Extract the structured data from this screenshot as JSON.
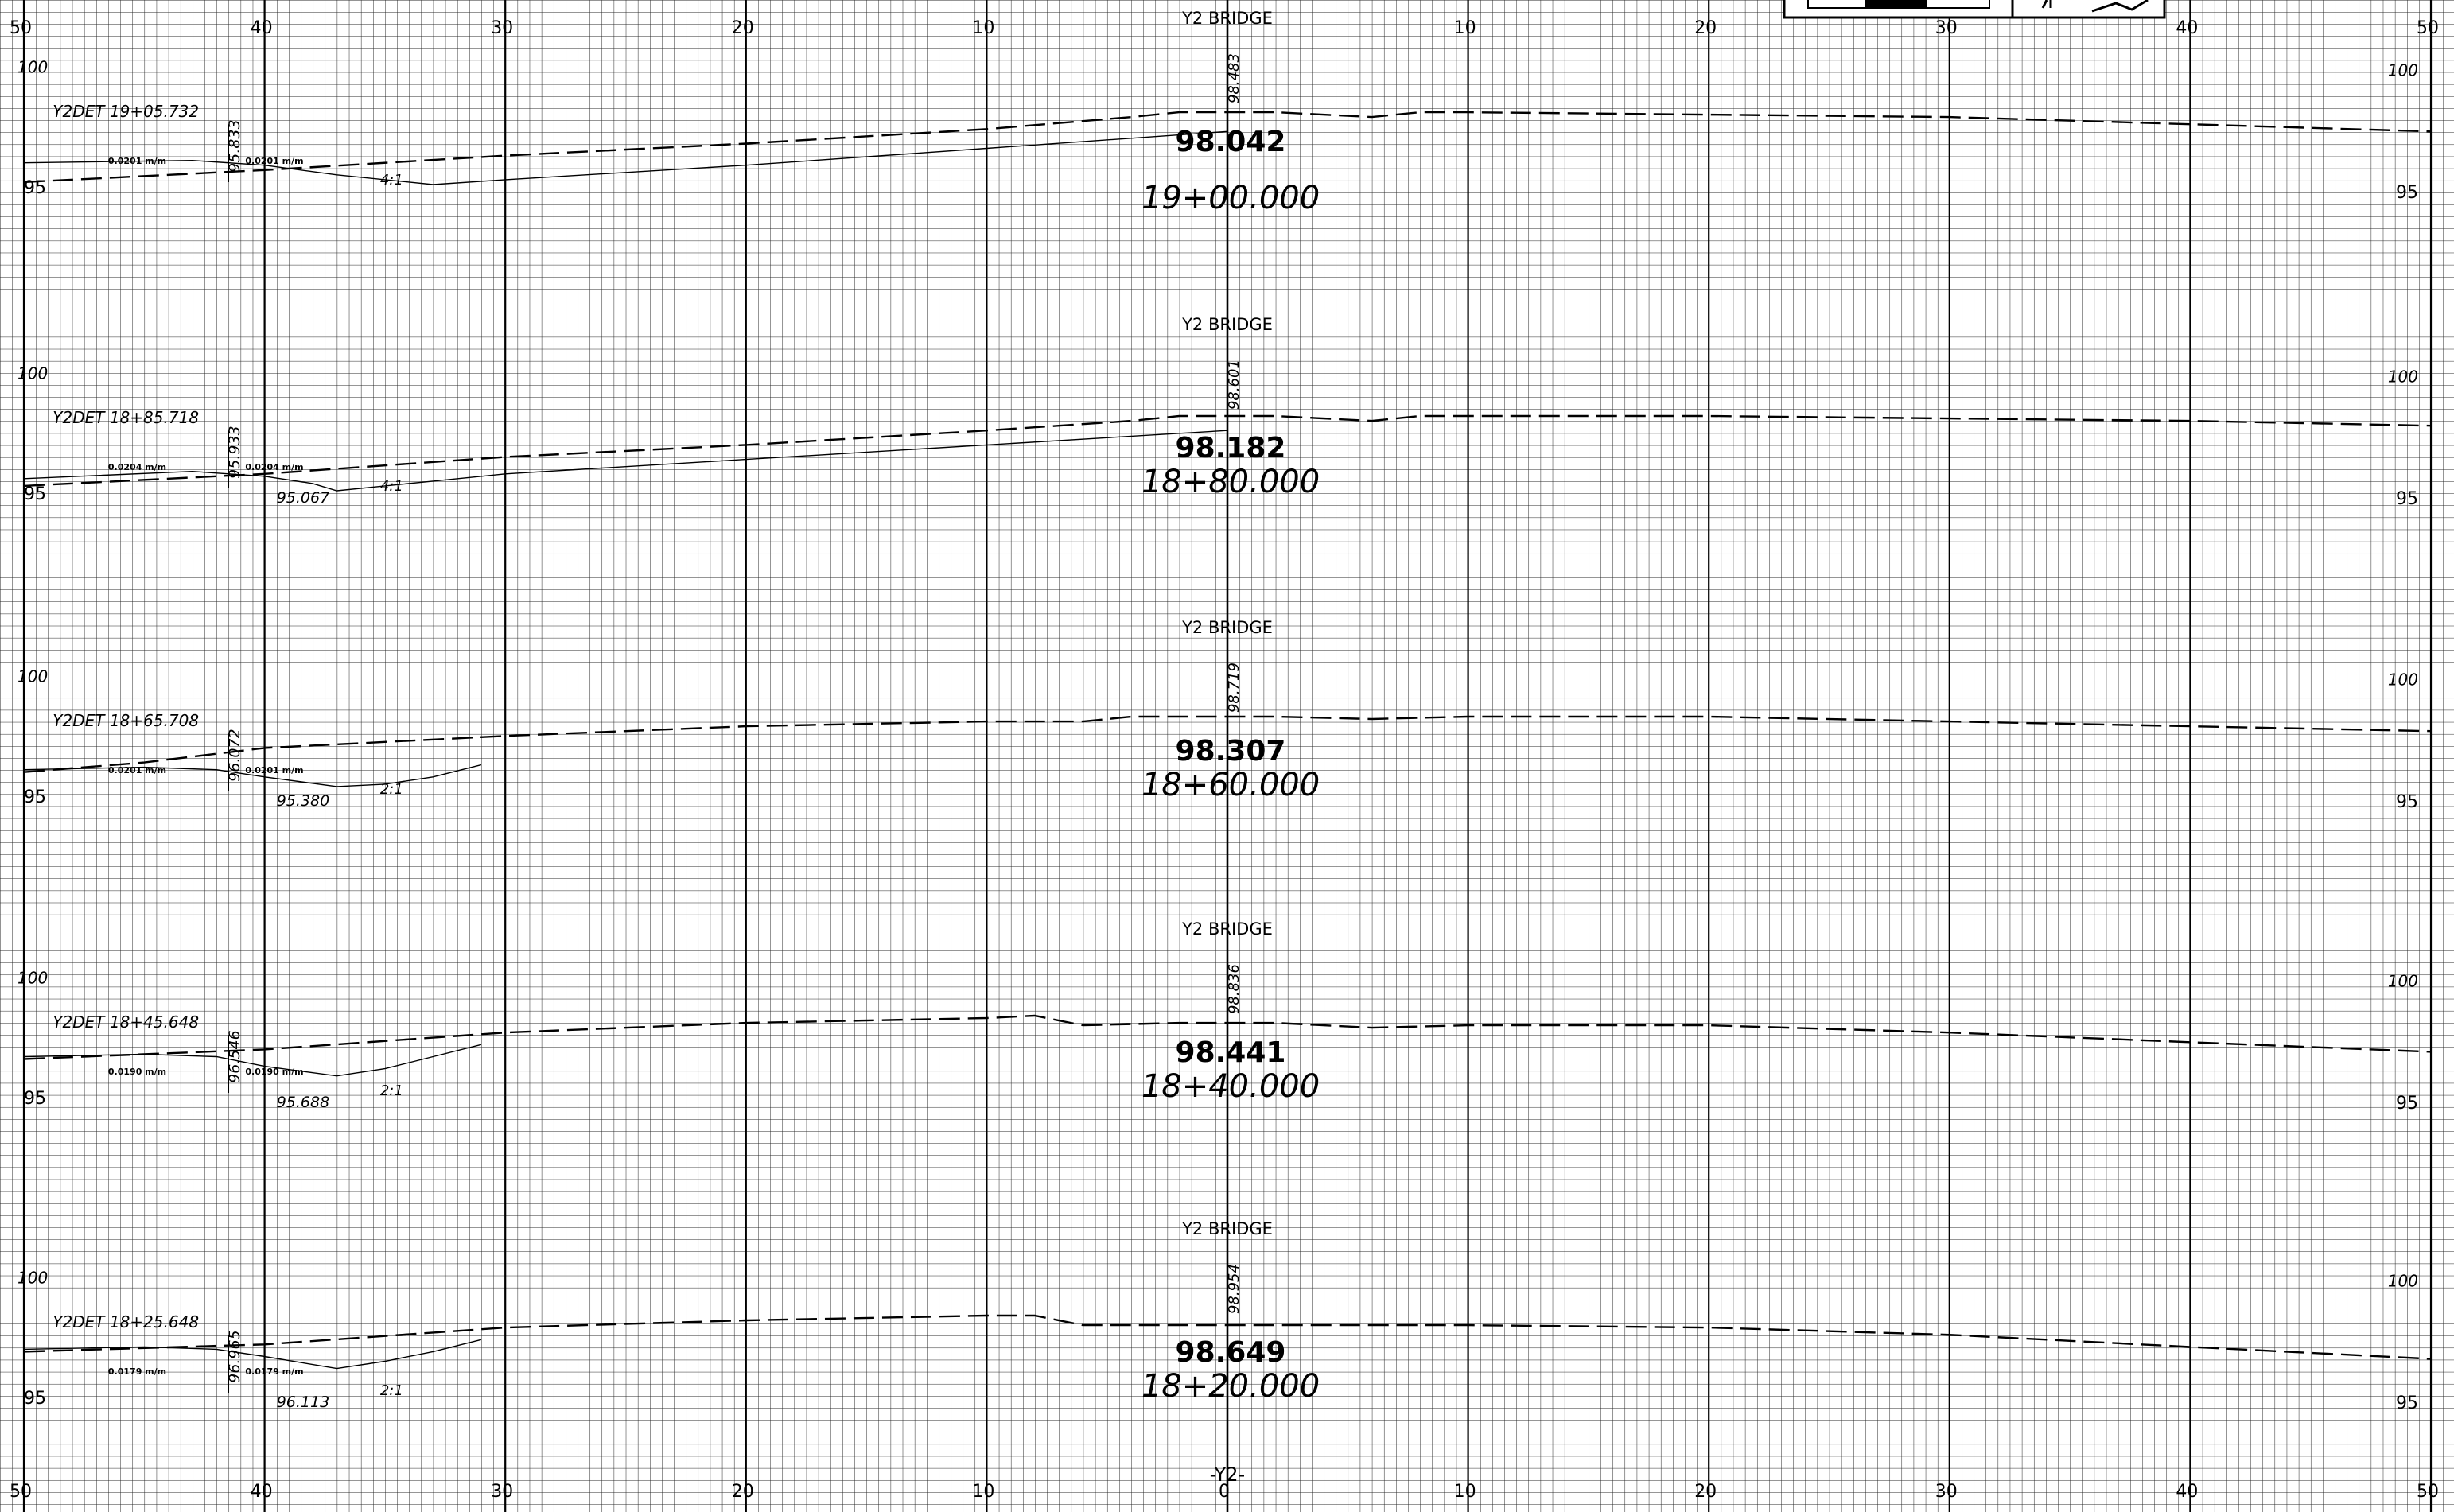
{
  "sheet": {
    "offset_axis": {
      "label": "-Y2-",
      "range": [
        -50,
        50
      ],
      "top_ticks": [
        {
          "value": -50,
          "label": "50"
        },
        {
          "value": -40,
          "label": "40"
        },
        {
          "value": -30,
          "label": "30"
        },
        {
          "value": -20,
          "label": "20"
        },
        {
          "value": -10,
          "label": "10"
        },
        {
          "value": 0,
          "label": ""
        },
        {
          "value": 10,
          "label": "10"
        },
        {
          "value": 20,
          "label": "20"
        },
        {
          "value": 30,
          "label": "30"
        },
        {
          "value": 40,
          "label": "40"
        },
        {
          "value": 50,
          "label": "50"
        }
      ],
      "bottom_ticks": [
        {
          "value": -50,
          "label": "50"
        },
        {
          "value": -40,
          "label": "40"
        },
        {
          "value": -30,
          "label": "30"
        },
        {
          "value": -20,
          "label": "20"
        },
        {
          "value": -10,
          "label": "10"
        },
        {
          "value": 0,
          "label": "0"
        },
        {
          "value": 10,
          "label": "10"
        },
        {
          "value": 20,
          "label": "20"
        },
        {
          "value": 30,
          "label": "30"
        },
        {
          "value": 40,
          "label": "40"
        },
        {
          "value": 50,
          "label": "50"
        }
      ]
    },
    "sections": [
      {
        "station": "19+00.000",
        "grade_elevation": "98.042",
        "bridge_label": "Y2 BRIDGE",
        "bridge_elev": "98.483",
        "det_label": "Y2DET 19+05.732",
        "det_elev": "95.833",
        "slope_left": "0.0201 m/m",
        "slope_right": "0.0201 m/m",
        "ditch_elev": "",
        "slope_ratio": "4:1",
        "elev_hi": "100",
        "elev_lo": "95",
        "ground": [
          [
            -50,
            95.2
          ],
          [
            -40,
            95.7
          ],
          [
            -30,
            96.3
          ],
          [
            -20,
            96.8
          ],
          [
            -10,
            97.4
          ],
          [
            -4,
            97.9
          ],
          [
            -2,
            98.1
          ],
          [
            2,
            98.1
          ],
          [
            6,
            97.9
          ],
          [
            8,
            98.1
          ],
          [
            10,
            98.1
          ],
          [
            20,
            98.0
          ],
          [
            30,
            97.9
          ],
          [
            40,
            97.6
          ],
          [
            50,
            97.3
          ]
        ],
        "template": [
          [
            -50,
            96.0
          ],
          [
            -43,
            96.1
          ],
          [
            -40,
            95.9
          ],
          [
            -37,
            95.5
          ],
          [
            -33,
            95.1
          ],
          [
            -30,
            95.3
          ],
          [
            -20,
            95.9
          ],
          [
            -10,
            96.6
          ],
          [
            0,
            97.3
          ]
        ]
      },
      {
        "station": "18+80.000",
        "grade_elevation": "98.182",
        "bridge_label": "Y2 BRIDGE",
        "bridge_elev": "98.601",
        "det_label": "Y2DET 18+85.718",
        "det_elev": "95.933",
        "slope_left": "0.0204 m/m",
        "slope_right": "0.0204 m/m",
        "ditch_elev": "95.067",
        "slope_ratio": "4:1",
        "elev_hi": "100",
        "elev_lo": "95",
        "ground": [
          [
            -50,
            95.3
          ],
          [
            -40,
            95.8
          ],
          [
            -30,
            96.5
          ],
          [
            -20,
            97.0
          ],
          [
            -10,
            97.6
          ],
          [
            -4,
            98.0
          ],
          [
            -2,
            98.2
          ],
          [
            2,
            98.2
          ],
          [
            6,
            98.0
          ],
          [
            8,
            98.2
          ],
          [
            10,
            98.2
          ],
          [
            20,
            98.2
          ],
          [
            30,
            98.1
          ],
          [
            40,
            98.0
          ],
          [
            50,
            97.8
          ]
        ],
        "template": [
          [
            -50,
            95.6
          ],
          [
            -43,
            95.9
          ],
          [
            -40,
            95.7
          ],
          [
            -38,
            95.4
          ],
          [
            -37,
            95.1
          ],
          [
            -35,
            95.3
          ],
          [
            -33,
            95.5
          ],
          [
            -30,
            95.8
          ],
          [
            -20,
            96.4
          ],
          [
            -10,
            97.0
          ],
          [
            0,
            97.6
          ]
        ]
      },
      {
        "station": "18+60.000",
        "grade_elevation": "98.307",
        "bridge_label": "Y2 BRIDGE",
        "bridge_elev": "98.719",
        "det_label": "Y2DET 18+65.708",
        "det_elev": "96.072",
        "slope_left": "0.0201 m/m",
        "slope_right": "0.0201 m/m",
        "ditch_elev": "95.380",
        "slope_ratio": "2:1",
        "elev_hi": "100",
        "elev_lo": "95",
        "ground": [
          [
            -50,
            96.0
          ],
          [
            -45,
            96.4
          ],
          [
            -40,
            97.0
          ],
          [
            -30,
            97.5
          ],
          [
            -20,
            97.9
          ],
          [
            -10,
            98.1
          ],
          [
            -6,
            98.1
          ],
          [
            -4,
            98.3
          ],
          [
            2,
            98.3
          ],
          [
            6,
            98.2
          ],
          [
            10,
            98.3
          ],
          [
            20,
            98.3
          ],
          [
            30,
            98.1
          ],
          [
            40,
            97.9
          ],
          [
            50,
            97.7
          ]
        ],
        "template": [
          [
            -50,
            96.1
          ],
          [
            -45,
            96.2
          ],
          [
            -42,
            96.1
          ],
          [
            -40,
            95.8
          ],
          [
            -37,
            95.4
          ],
          [
            -35,
            95.5
          ],
          [
            -33,
            95.8
          ],
          [
            -31,
            96.3
          ]
        ]
      },
      {
        "station": "18+40.000",
        "grade_elevation": "98.441",
        "bridge_label": "Y2 BRIDGE",
        "bridge_elev": "98.836",
        "det_label": "Y2DET 18+45.648",
        "det_elev": "96.546",
        "slope_left": "0.0190 m/m",
        "slope_right": "0.0190 m/m",
        "ditch_elev": "95.688",
        "slope_ratio": "2:1",
        "elev_hi": "100",
        "elev_lo": "95",
        "ground": [
          [
            -50,
            96.6
          ],
          [
            -40,
            97.0
          ],
          [
            -30,
            97.7
          ],
          [
            -20,
            98.1
          ],
          [
            -10,
            98.3
          ],
          [
            -8,
            98.4
          ],
          [
            -6,
            98.0
          ],
          [
            -2,
            98.1
          ],
          [
            2,
            98.1
          ],
          [
            6,
            97.9
          ],
          [
            10,
            98.0
          ],
          [
            20,
            98.0
          ],
          [
            30,
            97.7
          ],
          [
            40,
            97.3
          ],
          [
            50,
            96.9
          ]
        ],
        "template": [
          [
            -50,
            96.7
          ],
          [
            -45,
            96.8
          ],
          [
            -42,
            96.7
          ],
          [
            -40,
            96.3
          ],
          [
            -37,
            95.9
          ],
          [
            -35,
            96.2
          ],
          [
            -33,
            96.7
          ],
          [
            -31,
            97.2
          ]
        ]
      },
      {
        "station": "18+20.000",
        "grade_elevation": "98.649",
        "bridge_label": "Y2 BRIDGE",
        "bridge_elev": "98.954",
        "det_label": "Y2DET 18+25.648",
        "det_elev": "96.965",
        "slope_left": "0.0179 m/m",
        "slope_right": "0.0179 m/m",
        "ditch_elev": "96.113",
        "slope_ratio": "2:1",
        "elev_hi": "100",
        "elev_lo": "95",
        "ground": [
          [
            -50,
            96.9
          ],
          [
            -40,
            97.2
          ],
          [
            -30,
            97.9
          ],
          [
            -20,
            98.2
          ],
          [
            -10,
            98.4
          ],
          [
            -8,
            98.4
          ],
          [
            -6,
            98.0
          ],
          [
            -2,
            98.0
          ],
          [
            2,
            98.0
          ],
          [
            6,
            98.0
          ],
          [
            10,
            98.0
          ],
          [
            20,
            97.9
          ],
          [
            30,
            97.6
          ],
          [
            40,
            97.1
          ],
          [
            50,
            96.6
          ]
        ],
        "template": [
          [
            -50,
            97.0
          ],
          [
            -45,
            97.1
          ],
          [
            -42,
            97.0
          ],
          [
            -40,
            96.7
          ],
          [
            -37,
            96.2
          ],
          [
            -35,
            96.5
          ],
          [
            -33,
            96.9
          ],
          [
            -31,
            97.4
          ]
        ]
      }
    ]
  }
}
